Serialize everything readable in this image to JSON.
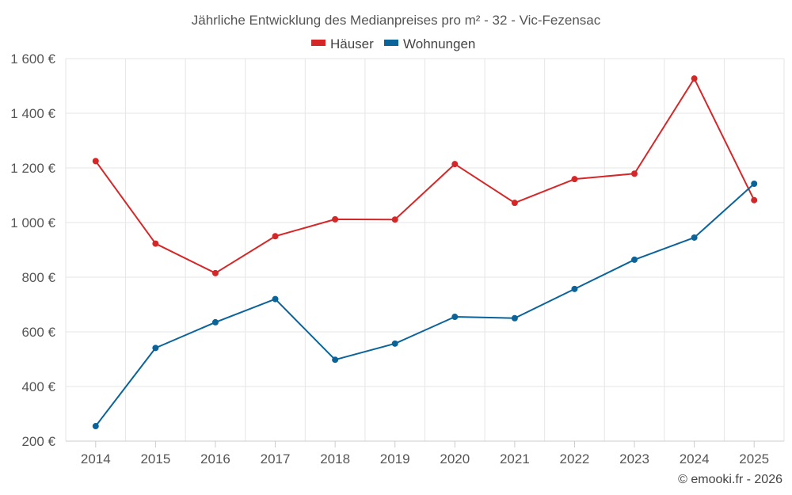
{
  "chart_data": {
    "type": "line",
    "title": "Jährliche Entwicklung des Medianpreises pro m² - 32 - Vic-Fezensac",
    "categories": [
      "2014",
      "2015",
      "2016",
      "2017",
      "2018",
      "2019",
      "2020",
      "2021",
      "2022",
      "2023",
      "2024",
      "2025"
    ],
    "series": [
      {
        "name": "Häuser",
        "color": "#d62728",
        "values": [
          1225,
          923,
          815,
          950,
          1012,
          1011,
          1214,
          1072,
          1159,
          1179,
          1527,
          1082
        ]
      },
      {
        "name": "Wohnungen",
        "color": "#0a6399",
        "values": [
          255,
          541,
          635,
          720,
          498,
          557,
          655,
          650,
          757,
          864,
          945,
          1142
        ]
      }
    ],
    "ylim": [
      200,
      1600
    ],
    "yticks": [
      200,
      400,
      600,
      800,
      1000,
      1200,
      1400,
      1600
    ],
    "ytick_labels": [
      "200 €",
      "400 €",
      "600 €",
      "800 €",
      "1 000 €",
      "1 200 €",
      "1 400 €",
      "1 600 €"
    ],
    "xlabel": "",
    "ylabel": "",
    "grid": true,
    "legend": "top-center"
  },
  "credit": "© emooki.fr - 2026"
}
